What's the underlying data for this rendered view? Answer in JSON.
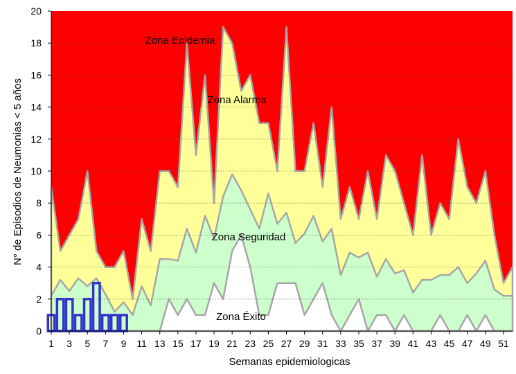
{
  "chart_data": {
    "type": "area",
    "xlabel": "Semanas epidemiologicas",
    "ylabel": "N° de Episodios de Neumonias < 5 años",
    "ylim": [
      0,
      20
    ],
    "y_ticks": [
      "0",
      "2",
      "4",
      "6",
      "8",
      "10",
      "12",
      "14",
      "16",
      "18",
      "20"
    ],
    "x_tick_labels": [
      "1",
      "3",
      "5",
      "7",
      "9",
      "11",
      "13",
      "15",
      "17",
      "19",
      "21",
      "23",
      "25",
      "27",
      "29",
      "31",
      "33",
      "35",
      "37",
      "39",
      "41",
      "43",
      "45",
      "47",
      "49",
      "51"
    ],
    "grid": true,
    "weeks": [
      1,
      2,
      3,
      4,
      5,
      6,
      7,
      8,
      9,
      10,
      11,
      12,
      13,
      14,
      15,
      16,
      17,
      18,
      19,
      20,
      21,
      22,
      23,
      24,
      25,
      26,
      27,
      28,
      29,
      30,
      31,
      32,
      33,
      34,
      35,
      36,
      37,
      38,
      39,
      40,
      41,
      42,
      43,
      44,
      45,
      46,
      47,
      48,
      49,
      50,
      51,
      52
    ],
    "zones": [
      {
        "name": "Zona Epidemia",
        "color": "#ff0000"
      },
      {
        "name": "Zona Alarma",
        "color": "#ffff99"
      },
      {
        "name": "Zona Seguridad",
        "color": "#ccffcc"
      },
      {
        "name": "Zona Éxito",
        "color": "#ffffff"
      }
    ],
    "series": [
      {
        "role": "alarma_upper",
        "color": "#ffff99",
        "values": [
          9,
          5,
          6,
          7,
          10,
          5,
          4,
          4,
          5,
          2,
          7,
          5,
          10,
          10,
          9,
          18,
          11,
          16,
          8,
          19,
          18,
          15,
          16,
          13,
          13,
          10,
          19,
          10,
          10,
          13,
          9,
          14,
          7,
          9,
          7,
          10,
          7,
          11,
          10,
          8,
          6,
          11,
          6,
          8,
          7,
          12,
          9,
          8,
          10,
          6,
          3,
          4
        ]
      },
      {
        "role": "seguridad_upper",
        "color": "#ccffcc",
        "values": [
          2.2,
          3.2,
          2.5,
          3.3,
          2.8,
          3.3,
          2.3,
          1.2,
          1.8,
          1.0,
          2.8,
          1.6,
          4.5,
          4.5,
          4.4,
          6.4,
          4.9,
          7.2,
          5.8,
          8.4,
          9.8,
          8.8,
          7.6,
          6.4,
          8.6,
          6.7,
          7.4,
          5.5,
          6.1,
          7.2,
          5.6,
          6.4,
          3.5,
          4.9,
          4.6,
          4.9,
          3.4,
          4.5,
          3.6,
          3.8,
          2.4,
          3.2,
          3.2,
          3.5,
          3.5,
          4.0,
          3.0,
          3.6,
          4.4,
          2.6,
          2.2,
          2.2
        ]
      },
      {
        "role": "exito_upper",
        "color": "#ffffff",
        "values": [
          0,
          0,
          0,
          0,
          0,
          0,
          0,
          0,
          0,
          0,
          0,
          0,
          0,
          2,
          1,
          2,
          1,
          1,
          3,
          2,
          5,
          6,
          4,
          1,
          1,
          3,
          3,
          3,
          1,
          2,
          3,
          1,
          0,
          1,
          2,
          0,
          1,
          1,
          0,
          1,
          0,
          0,
          0,
          1,
          0,
          0,
          1,
          0,
          1,
          0,
          0,
          0
        ]
      },
      {
        "role": "observed",
        "color": "#3333cc",
        "values": [
          1,
          2,
          2,
          1,
          2,
          3,
          1,
          1,
          1
        ]
      }
    ]
  }
}
